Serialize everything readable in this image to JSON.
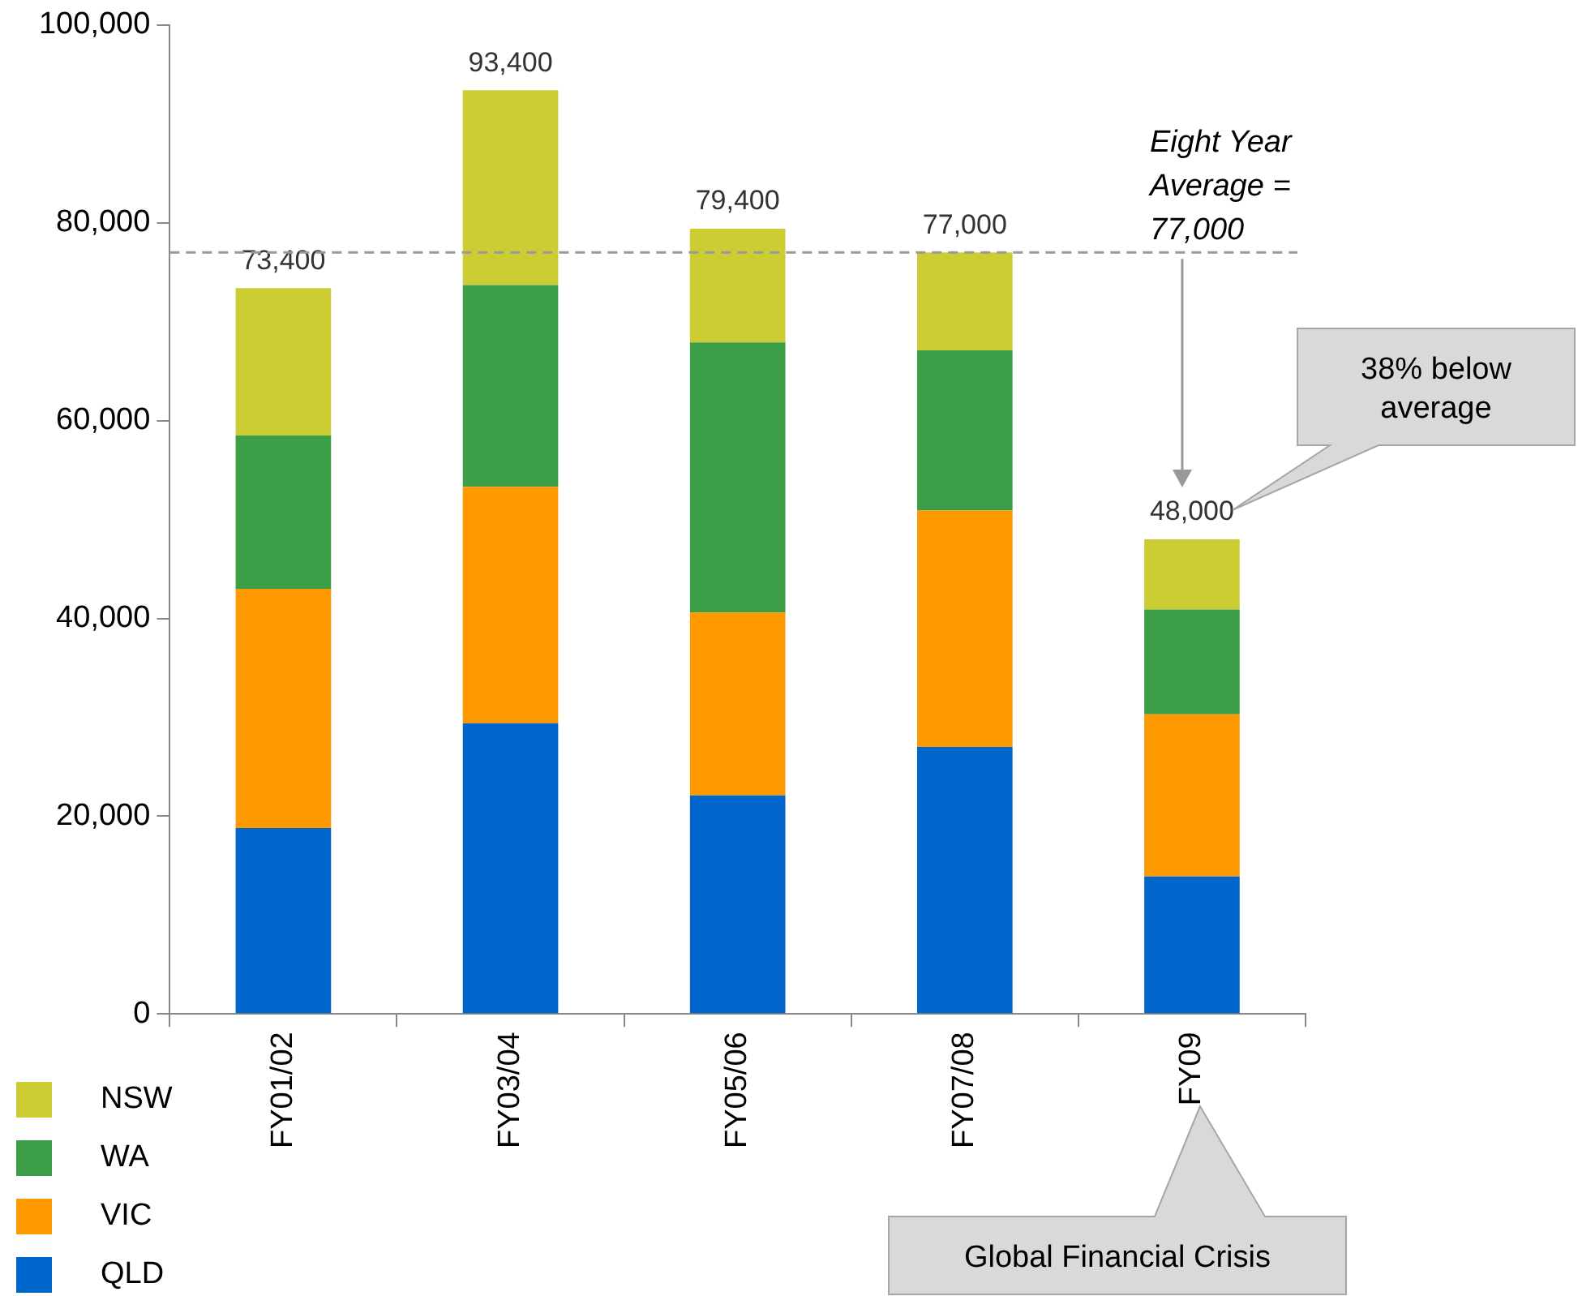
{
  "chart_data": {
    "type": "bar",
    "stacked": true,
    "categories": [
      "FY01/02",
      "FY03/04",
      "FY05/06",
      "FY07/08",
      "FY09"
    ],
    "series": [
      {
        "name": "QLD",
        "color": "#0066cc",
        "values": [
          18800,
          29400,
          22100,
          27000,
          13900
        ]
      },
      {
        "name": "VIC",
        "color": "#ff9900",
        "values": [
          24200,
          23900,
          18500,
          23900,
          16400
        ]
      },
      {
        "name": "WA",
        "color": "#3d9e48",
        "values": [
          15500,
          20400,
          27300,
          16200,
          10600
        ]
      },
      {
        "name": "NSW",
        "color": "#cccc33",
        "values": [
          14900,
          19700,
          11500,
          9900,
          7100
        ]
      }
    ],
    "totals": [
      "73,400",
      "93,400",
      "79,400",
      "77,000",
      "48,000"
    ],
    "ylim": [
      0,
      100000
    ],
    "yticks": [
      {
        "value": 0,
        "label": "0"
      },
      {
        "value": 20000,
        "label": "20,000"
      },
      {
        "value": 40000,
        "label": "40,000"
      },
      {
        "value": 60000,
        "label": "60,000"
      },
      {
        "value": 80000,
        "label": "80,000"
      },
      {
        "value": 100000,
        "label": "100,000"
      }
    ],
    "ref_lines": [
      {
        "axis": "y",
        "value": 77000,
        "label": "Eight Year Average = 77,000",
        "color": "#999999",
        "line_style": "dashed"
      }
    ],
    "annotations": [
      "38% below average",
      "Global Financial Crisis"
    ],
    "grid": false,
    "legend": "bottom left"
  }
}
